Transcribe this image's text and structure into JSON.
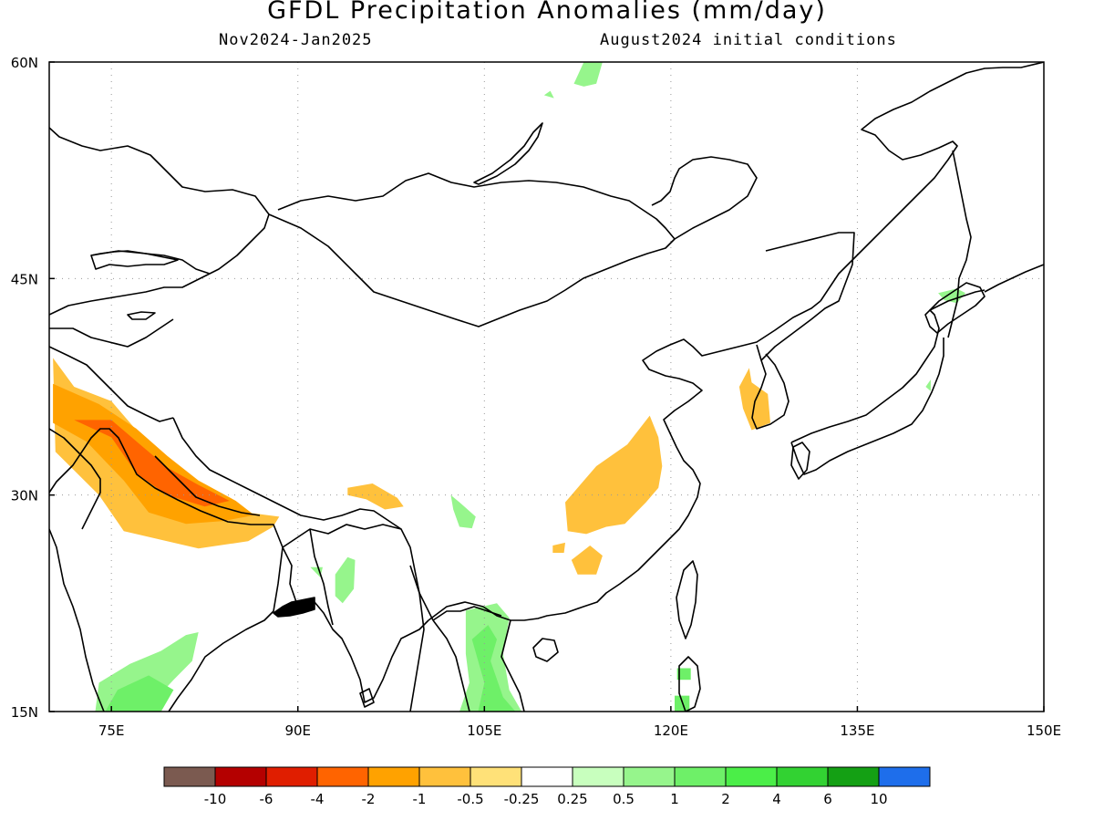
{
  "title": "GFDL Precipitation Anomalies (mm/day)",
  "period": "Nov2024-Jan2025",
  "initial_conditions": "August2024 initial conditions",
  "map": {
    "lon_range": [
      70,
      150
    ],
    "lat_range": [
      15,
      60
    ],
    "lon_labels": [
      {
        "lon": 75,
        "text": "75E"
      },
      {
        "lon": 90,
        "text": "90E"
      },
      {
        "lon": 105,
        "text": "105E"
      },
      {
        "lon": 120,
        "text": "120E"
      },
      {
        "lon": 135,
        "text": "135E"
      },
      {
        "lon": 150,
        "text": "150E"
      }
    ],
    "lat_labels": [
      {
        "lat": 60,
        "text": "60N"
      },
      {
        "lat": 45,
        "text": "45N"
      },
      {
        "lat": 30,
        "text": "30N"
      },
      {
        "lat": 15,
        "text": "15N"
      }
    ]
  },
  "colorbar": {
    "colors": [
      "#7b5a50",
      "#b40000",
      "#e01e00",
      "#ff6400",
      "#ffa200",
      "#ffc13c",
      "#ffe178",
      "#ffffff",
      "#c8ffbe",
      "#96f58c",
      "#6ef068",
      "#4bee48",
      "#32d232",
      "#14a014",
      "#1e6eeb"
    ],
    "labels": [
      "-10",
      "-6",
      "-4",
      "-2",
      "-1",
      "-0.5",
      "-0.25",
      "0.25",
      "0.5",
      "1",
      "2",
      "4",
      "6",
      "10"
    ]
  },
  "anomaly_regions": [
    {
      "name": "western-himalaya",
      "level": "-0.5",
      "points": [
        [
          70.3,
          39.5
        ],
        [
          70.5,
          33
        ],
        [
          74,
          30
        ],
        [
          76,
          27.5
        ],
        [
          82,
          26.3
        ],
        [
          86,
          26.8
        ],
        [
          88,
          27.8
        ],
        [
          88.5,
          28.5
        ],
        [
          84,
          29
        ],
        [
          82,
          30.5
        ],
        [
          79,
          32.5
        ],
        [
          77,
          34.5
        ],
        [
          75,
          36.5
        ],
        [
          72,
          37.5
        ],
        [
          70.3,
          39.5
        ]
      ]
    },
    {
      "name": "himalaya-core",
      "level": "-1",
      "points": [
        [
          70.3,
          35
        ],
        [
          73,
          33.7
        ],
        [
          76,
          31
        ],
        [
          78,
          28.8
        ],
        [
          81,
          28
        ],
        [
          84,
          28.2
        ],
        [
          86.5,
          28.6
        ],
        [
          85,
          29.6
        ],
        [
          82,
          31
        ],
        [
          79.5,
          32.7
        ],
        [
          77,
          34.6
        ],
        [
          74,
          36.3
        ],
        [
          70.3,
          37.7
        ]
      ]
    },
    {
      "name": "himalaya-peak",
      "level": "-2",
      "points": [
        [
          72,
          35.2
        ],
        [
          75,
          34
        ],
        [
          77,
          31.5
        ],
        [
          79.5,
          30
        ],
        [
          82.5,
          29.2
        ],
        [
          84.5,
          29.6
        ],
        [
          82,
          30.7
        ],
        [
          79.5,
          31.9
        ],
        [
          77.3,
          33.5
        ],
        [
          75,
          35.2
        ]
      ]
    },
    {
      "name": "yunnan-tibet-edge",
      "level": "-0.5",
      "points": [
        [
          94,
          30.5
        ],
        [
          96,
          30.8
        ],
        [
          98,
          29.8
        ],
        [
          98.5,
          29.2
        ],
        [
          97,
          29
        ],
        [
          95.5,
          29.7
        ],
        [
          94,
          30
        ]
      ]
    },
    {
      "name": "east-china",
      "level": "-0.5",
      "points": [
        [
          111.5,
          29.5
        ],
        [
          114,
          32
        ],
        [
          116.5,
          33.5
        ],
        [
          118.3,
          35.5
        ],
        [
          119,
          34
        ],
        [
          119.3,
          32
        ],
        [
          119,
          30.5
        ],
        [
          118,
          29.5
        ],
        [
          116.3,
          28
        ],
        [
          114.8,
          27.8
        ],
        [
          113.2,
          27.3
        ],
        [
          111.7,
          27.5
        ],
        [
          111.5,
          29.5
        ]
      ]
    },
    {
      "name": "south-china-patch",
      "level": "-0.5",
      "points": [
        [
          112,
          25.5
        ],
        [
          113.5,
          26.5
        ],
        [
          114.5,
          25.8
        ],
        [
          114,
          24.5
        ],
        [
          112.5,
          24.5
        ]
      ]
    },
    {
      "name": "guangdong-patch",
      "level": "-0.5",
      "points": [
        [
          110.5,
          26.5
        ],
        [
          111.5,
          26.7
        ],
        [
          111.4,
          26
        ],
        [
          110.5,
          26
        ]
      ]
    },
    {
      "name": "korea",
      "level": "-0.5",
      "points": [
        [
          125.5,
          37.5
        ],
        [
          126.3,
          38.8
        ],
        [
          126.5,
          37.8
        ],
        [
          127.8,
          37
        ],
        [
          128,
          35
        ],
        [
          126.5,
          34.5
        ],
        [
          125.8,
          36
        ],
        [
          125.5,
          37.5
        ]
      ]
    },
    {
      "name": "india-south",
      "level": "0.5",
      "points": [
        [
          73.7,
          15
        ],
        [
          74,
          17
        ],
        [
          76.5,
          18.3
        ],
        [
          79,
          19.2
        ],
        [
          81,
          20.3
        ],
        [
          82,
          20.5
        ],
        [
          81.5,
          18.5
        ],
        [
          80,
          17.2
        ],
        [
          78.5,
          15.8
        ],
        [
          77.5,
          15
        ]
      ]
    },
    {
      "name": "india-south-core",
      "level": "1",
      "points": [
        [
          74.5,
          15
        ],
        [
          75.5,
          16.5
        ],
        [
          78,
          17.5
        ],
        [
          80,
          16.5
        ],
        [
          79,
          15
        ]
      ]
    },
    {
      "name": "bangladesh-east",
      "level": "0.5",
      "points": [
        [
          93,
          24.5
        ],
        [
          94,
          25.7
        ],
        [
          94.6,
          25.5
        ],
        [
          94.5,
          23.5
        ],
        [
          93.6,
          22.5
        ],
        [
          93,
          23
        ]
      ]
    },
    {
      "name": "myanmar-small",
      "level": "0.5",
      "points": [
        [
          91,
          25
        ],
        [
          92,
          25
        ],
        [
          91.8,
          24.3
        ]
      ]
    },
    {
      "name": "sichuan-green",
      "level": "0.5",
      "points": [
        [
          102.3,
          30
        ],
        [
          103,
          29.5
        ],
        [
          104.3,
          28.5
        ],
        [
          104,
          27.7
        ],
        [
          103,
          27.8
        ],
        [
          102.5,
          29
        ]
      ]
    },
    {
      "name": "indochina",
      "level": "0.5",
      "points": [
        [
          103.5,
          22
        ],
        [
          106,
          22.5
        ],
        [
          107,
          21.5
        ],
        [
          106.5,
          19
        ],
        [
          107,
          16.5
        ],
        [
          108,
          15
        ],
        [
          103,
          15
        ],
        [
          103.8,
          17
        ],
        [
          103.5,
          19
        ]
      ]
    },
    {
      "name": "indochina-core",
      "level": "1",
      "points": [
        [
          104,
          20
        ],
        [
          105.3,
          21
        ],
        [
          106,
          20
        ],
        [
          105.5,
          18.5
        ],
        [
          106.5,
          16
        ],
        [
          107.5,
          15
        ],
        [
          104.5,
          15
        ],
        [
          105,
          17
        ]
      ]
    },
    {
      "name": "taiwan",
      "level": "1",
      "points": [
        [
          120.5,
          18
        ],
        [
          121.6,
          18
        ],
        [
          121.6,
          17.2
        ],
        [
          120.5,
          17.2
        ]
      ]
    },
    {
      "name": "luzon",
      "level": "1",
      "points": [
        [
          120.3,
          16.1
        ],
        [
          121.5,
          16.1
        ],
        [
          121.5,
          15
        ],
        [
          120.3,
          15
        ]
      ]
    },
    {
      "name": "mongolia-north",
      "level": "0.5",
      "points": [
        [
          112.2,
          58.5
        ],
        [
          113,
          60
        ],
        [
          114.5,
          60
        ],
        [
          114,
          58.5
        ],
        [
          113,
          58.3
        ]
      ]
    },
    {
      "name": "baikal-speck",
      "level": "0.5",
      "points": [
        [
          109.8,
          57.7
        ],
        [
          110.3,
          58
        ],
        [
          110.6,
          57.5
        ]
      ]
    },
    {
      "name": "hokkaido",
      "level": "0.5",
      "points": [
        [
          141.5,
          44
        ],
        [
          143,
          44.3
        ],
        [
          143.7,
          44
        ],
        [
          143,
          43.3
        ],
        [
          142,
          43.5
        ]
      ]
    },
    {
      "name": "honshu-speck",
      "level": "0.5",
      "points": [
        [
          140.5,
          37.5
        ],
        [
          140.9,
          38
        ],
        [
          140.9,
          37.2
        ]
      ]
    }
  ]
}
